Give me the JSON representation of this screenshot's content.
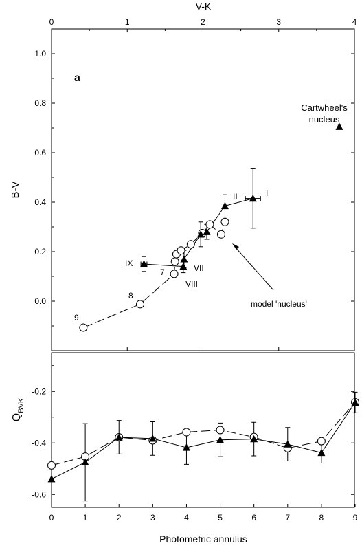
{
  "chart_data": [
    {
      "type": "scatter",
      "panel_label": "a",
      "xlabel": "V-K",
      "ylabel": "B-V",
      "xlim": [
        0,
        4
      ],
      "ylim": [
        -0.2,
        1.1
      ],
      "x_ticks": [
        0,
        1,
        2,
        3,
        4
      ],
      "y_ticks": [
        0.0,
        0.2,
        0.4,
        0.6,
        0.8,
        1.0
      ],
      "x_tick_labels": [
        "0",
        "1",
        "2",
        "3",
        "4"
      ],
      "y_tick_labels": [
        "0.0",
        "0.2",
        "0.4",
        "0.6",
        "0.8",
        "1.0"
      ],
      "x_axis_position": "top",
      "series": [
        {
          "marker": "open-circle",
          "line": "dashed",
          "points": [
            {
              "x": 0.42,
              "y": -0.107
            },
            {
              "x": 1.17,
              "y": -0.012
            },
            {
              "x": 1.62,
              "y": 0.11
            },
            {
              "x": 1.63,
              "y": 0.16
            },
            {
              "x": 1.65,
              "y": 0.19
            },
            {
              "x": 1.71,
              "y": 0.205
            },
            {
              "x": 1.84,
              "y": 0.23
            },
            {
              "x": 1.99,
              "y": 0.275
            },
            {
              "x": 2.09,
              "y": 0.31
            },
            {
              "x": 2.24,
              "y": 0.27
            },
            {
              "x": 2.29,
              "y": 0.32
            }
          ]
        },
        {
          "marker": "filled-triangle",
          "line": "solid",
          "points": [
            {
              "x": 1.22,
              "y": 0.15,
              "yerr": 0.03,
              "xerr": 0.04
            },
            {
              "x": 1.74,
              "y": 0.14,
              "yerr": 0.025
            },
            {
              "x": 1.75,
              "y": 0.17,
              "yerr": 0.035
            },
            {
              "x": 1.97,
              "y": 0.27,
              "yerr": 0.05
            },
            {
              "x": 2.05,
              "y": 0.28,
              "yerr": 0.03
            },
            {
              "x": 2.29,
              "y": 0.385,
              "yerr": 0.045
            },
            {
              "x": 2.66,
              "y": 0.415,
              "yerr": 0.12,
              "xerr": 0.1
            }
          ]
        },
        {
          "marker": "filled-triangle",
          "line": "none",
          "points": [
            {
              "x": 3.8,
              "y": 0.705,
              "yerr": 0.01
            }
          ]
        }
      ],
      "annotations": {
        "cartwheel_line1": "Cartwheel's",
        "cartwheel_line2": "nucleus",
        "model_nucleus": "model 'nucleus'",
        "roman_I": "I",
        "roman_II": "II",
        "roman_VII": "VII",
        "roman_VIII": "VIII",
        "roman_IX": "IX",
        "num_7": "7",
        "num_8": "8",
        "num_9": "9"
      }
    },
    {
      "type": "line",
      "xlabel": "Photometric annulus",
      "ylabel_main": "Q",
      "ylabel_sub": "BVK",
      "xlim": [
        0,
        9
      ],
      "ylim": [
        -0.65,
        -0.05
      ],
      "x_ticks": [
        0,
        1,
        2,
        3,
        4,
        5,
        6,
        7,
        8,
        9
      ],
      "y_ticks": [
        -0.6,
        -0.4,
        -0.2
      ],
      "x_tick_labels": [
        "0",
        "1",
        "2",
        "3",
        "4",
        "5",
        "6",
        "7",
        "8",
        "9"
      ],
      "y_tick_labels": [
        "-0.6",
        "-0.4",
        "-0.2"
      ],
      "series": [
        {
          "marker": "filled-triangle",
          "line": "solid",
          "x": [
            0,
            1,
            2,
            3,
            4,
            5,
            6,
            7,
            8,
            9
          ],
          "values": [
            -0.54,
            -0.475,
            -0.378,
            -0.383,
            -0.418,
            -0.388,
            -0.385,
            -0.405,
            -0.438,
            -0.243
          ],
          "errors": [
            0,
            0.15,
            0.065,
            0.065,
            0.065,
            0.065,
            0.065,
            0.065,
            0.04,
            0.04
          ]
        },
        {
          "marker": "open-circle",
          "line": "dashed",
          "x": [
            0,
            1,
            2,
            3,
            4,
            5,
            6,
            7,
            8,
            9
          ],
          "values": [
            -0.487,
            -0.453,
            -0.378,
            -0.39,
            -0.358,
            -0.35,
            -0.377,
            -0.42,
            -0.393,
            -0.242
          ]
        }
      ]
    }
  ]
}
